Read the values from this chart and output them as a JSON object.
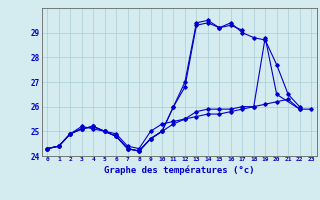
{
  "title": "Graphe des températures (°c)",
  "background_color": "#d4ecf0",
  "grid_color": "#aaccd4",
  "line_color": "#0000cc",
  "x_min": 0,
  "x_max": 23,
  "y_min": 24,
  "y_max": 30,
  "s1_x": [
    0,
    1,
    2,
    3,
    4,
    5,
    6,
    7,
    8,
    9,
    10,
    11,
    12,
    13,
    14,
    15,
    16,
    17,
    18,
    19,
    20,
    21,
    22
  ],
  "s1_y": [
    24.3,
    24.4,
    24.9,
    25.1,
    25.2,
    25.0,
    24.8,
    24.3,
    24.2,
    24.7,
    25.0,
    26.0,
    26.8,
    29.3,
    29.4,
    29.2,
    29.4,
    29.0,
    28.8,
    28.7,
    27.7,
    26.5,
    26.0
  ],
  "s2_x": [
    0,
    1,
    2,
    3,
    4,
    5,
    6,
    7,
    8,
    9,
    10,
    11,
    12,
    13,
    14,
    15,
    16,
    17,
    18,
    19,
    20,
    21,
    22,
    23
  ],
  "s2_y": [
    24.3,
    24.4,
    24.9,
    25.1,
    25.2,
    25.0,
    24.8,
    24.3,
    24.2,
    24.7,
    25.0,
    25.3,
    25.5,
    25.6,
    25.7,
    25.7,
    25.8,
    25.9,
    26.0,
    26.1,
    26.2,
    26.3,
    25.9,
    25.9
  ],
  "s3_x": [
    0,
    1,
    2,
    3,
    4,
    5,
    6,
    7,
    8,
    9,
    10,
    11,
    12,
    13,
    14,
    15,
    16,
    17
  ],
  "s3_y": [
    24.3,
    24.4,
    24.9,
    25.1,
    25.2,
    25.0,
    24.8,
    24.3,
    24.2,
    24.7,
    25.0,
    26.0,
    27.0,
    29.4,
    29.5,
    29.2,
    29.3,
    29.1
  ],
  "s4_x": [
    0,
    1,
    2,
    3,
    4,
    5,
    6,
    7,
    8,
    9,
    10,
    11,
    12,
    13,
    14,
    15,
    16,
    17,
    18,
    19,
    20,
    22
  ],
  "s4_y": [
    24.3,
    24.4,
    24.9,
    25.2,
    25.1,
    25.0,
    24.9,
    24.4,
    24.3,
    25.0,
    25.3,
    25.4,
    25.5,
    25.8,
    25.9,
    25.9,
    25.9,
    26.0,
    26.0,
    28.8,
    26.5,
    25.9
  ],
  "yticks": [
    24,
    25,
    26,
    27,
    28,
    29
  ],
  "ytick_labels": [
    "24",
    "25",
    "26",
    "27",
    "28",
    "29"
  ],
  "xtick_labels": [
    "0",
    "1",
    "2",
    "3",
    "4",
    "5",
    "6",
    "7",
    "8",
    "9",
    "10",
    "11",
    "12",
    "13",
    "14",
    "15",
    "16",
    "17",
    "18",
    "19",
    "20",
    "21",
    "22",
    "23"
  ]
}
